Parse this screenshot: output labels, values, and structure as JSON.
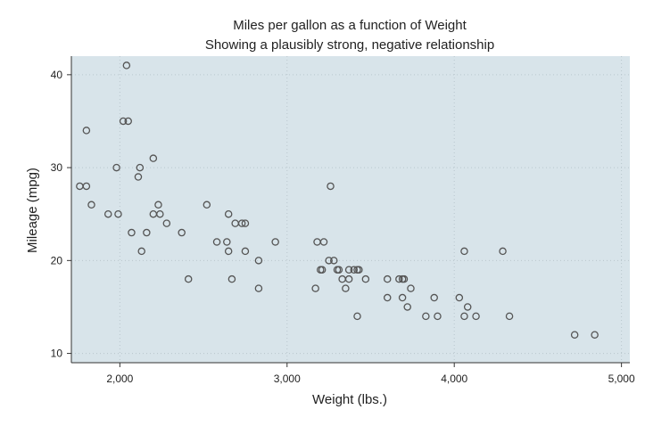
{
  "chart_data": {
    "type": "scatter",
    "title": "Miles per gallon as a function of Weight",
    "subtitle": "Showing a plausibly strong, negative relationship",
    "xlabel": "Weight (lbs.)",
    "ylabel": "Mileage (mpg)",
    "xlim": [
      1710,
      5050
    ],
    "ylim": [
      9,
      42
    ],
    "xticks": [
      2000,
      3000,
      4000,
      5000
    ],
    "xtick_labels": [
      "2,000",
      "3,000",
      "4,000",
      "5,000"
    ],
    "yticks": [
      10,
      20,
      30,
      40
    ],
    "ytick_labels": [
      "10",
      "20",
      "30",
      "40"
    ],
    "grid": "dotted",
    "colors": {
      "plot_background": "#d8e4ea",
      "marker": "#555555",
      "grid": "#b9c6cd"
    },
    "points": [
      {
        "x": 1760,
        "y": 28
      },
      {
        "x": 1800,
        "y": 28
      },
      {
        "x": 1800,
        "y": 34
      },
      {
        "x": 1830,
        "y": 26
      },
      {
        "x": 1930,
        "y": 25
      },
      {
        "x": 1980,
        "y": 30
      },
      {
        "x": 1990,
        "y": 25
      },
      {
        "x": 2020,
        "y": 35
      },
      {
        "x": 2040,
        "y": 41
      },
      {
        "x": 2050,
        "y": 35
      },
      {
        "x": 2070,
        "y": 23
      },
      {
        "x": 2110,
        "y": 29
      },
      {
        "x": 2120,
        "y": 30
      },
      {
        "x": 2130,
        "y": 21
      },
      {
        "x": 2160,
        "y": 23
      },
      {
        "x": 2200,
        "y": 31
      },
      {
        "x": 2200,
        "y": 25
      },
      {
        "x": 2230,
        "y": 26
      },
      {
        "x": 2240,
        "y": 25
      },
      {
        "x": 2280,
        "y": 24
      },
      {
        "x": 2370,
        "y": 23
      },
      {
        "x": 2410,
        "y": 18
      },
      {
        "x": 2520,
        "y": 26
      },
      {
        "x": 2580,
        "y": 22
      },
      {
        "x": 2640,
        "y": 22
      },
      {
        "x": 2650,
        "y": 25
      },
      {
        "x": 2650,
        "y": 21
      },
      {
        "x": 2670,
        "y": 18
      },
      {
        "x": 2690,
        "y": 24
      },
      {
        "x": 2730,
        "y": 24
      },
      {
        "x": 2750,
        "y": 24
      },
      {
        "x": 2750,
        "y": 21
      },
      {
        "x": 2830,
        "y": 20
      },
      {
        "x": 2830,
        "y": 17
      },
      {
        "x": 2930,
        "y": 22
      },
      {
        "x": 3170,
        "y": 17
      },
      {
        "x": 3180,
        "y": 22
      },
      {
        "x": 3200,
        "y": 19
      },
      {
        "x": 3210,
        "y": 19
      },
      {
        "x": 3220,
        "y": 22
      },
      {
        "x": 3250,
        "y": 20
      },
      {
        "x": 3260,
        "y": 28
      },
      {
        "x": 3280,
        "y": 20
      },
      {
        "x": 3300,
        "y": 19
      },
      {
        "x": 3310,
        "y": 19
      },
      {
        "x": 3330,
        "y": 18
      },
      {
        "x": 3350,
        "y": 17
      },
      {
        "x": 3370,
        "y": 19
      },
      {
        "x": 3370,
        "y": 18
      },
      {
        "x": 3400,
        "y": 19
      },
      {
        "x": 3420,
        "y": 19
      },
      {
        "x": 3420,
        "y": 14
      },
      {
        "x": 3430,
        "y": 19
      },
      {
        "x": 3470,
        "y": 18
      },
      {
        "x": 3600,
        "y": 18
      },
      {
        "x": 3600,
        "y": 16
      },
      {
        "x": 3670,
        "y": 18
      },
      {
        "x": 3690,
        "y": 18
      },
      {
        "x": 3690,
        "y": 16
      },
      {
        "x": 3700,
        "y": 18
      },
      {
        "x": 3720,
        "y": 15
      },
      {
        "x": 3740,
        "y": 17
      },
      {
        "x": 3830,
        "y": 14
      },
      {
        "x": 3880,
        "y": 16
      },
      {
        "x": 3900,
        "y": 14
      },
      {
        "x": 4030,
        "y": 16
      },
      {
        "x": 4060,
        "y": 21
      },
      {
        "x": 4060,
        "y": 14
      },
      {
        "x": 4080,
        "y": 15
      },
      {
        "x": 4130,
        "y": 14
      },
      {
        "x": 4290,
        "y": 21
      },
      {
        "x": 4330,
        "y": 14
      },
      {
        "x": 4720,
        "y": 12
      },
      {
        "x": 4840,
        "y": 12
      }
    ]
  }
}
